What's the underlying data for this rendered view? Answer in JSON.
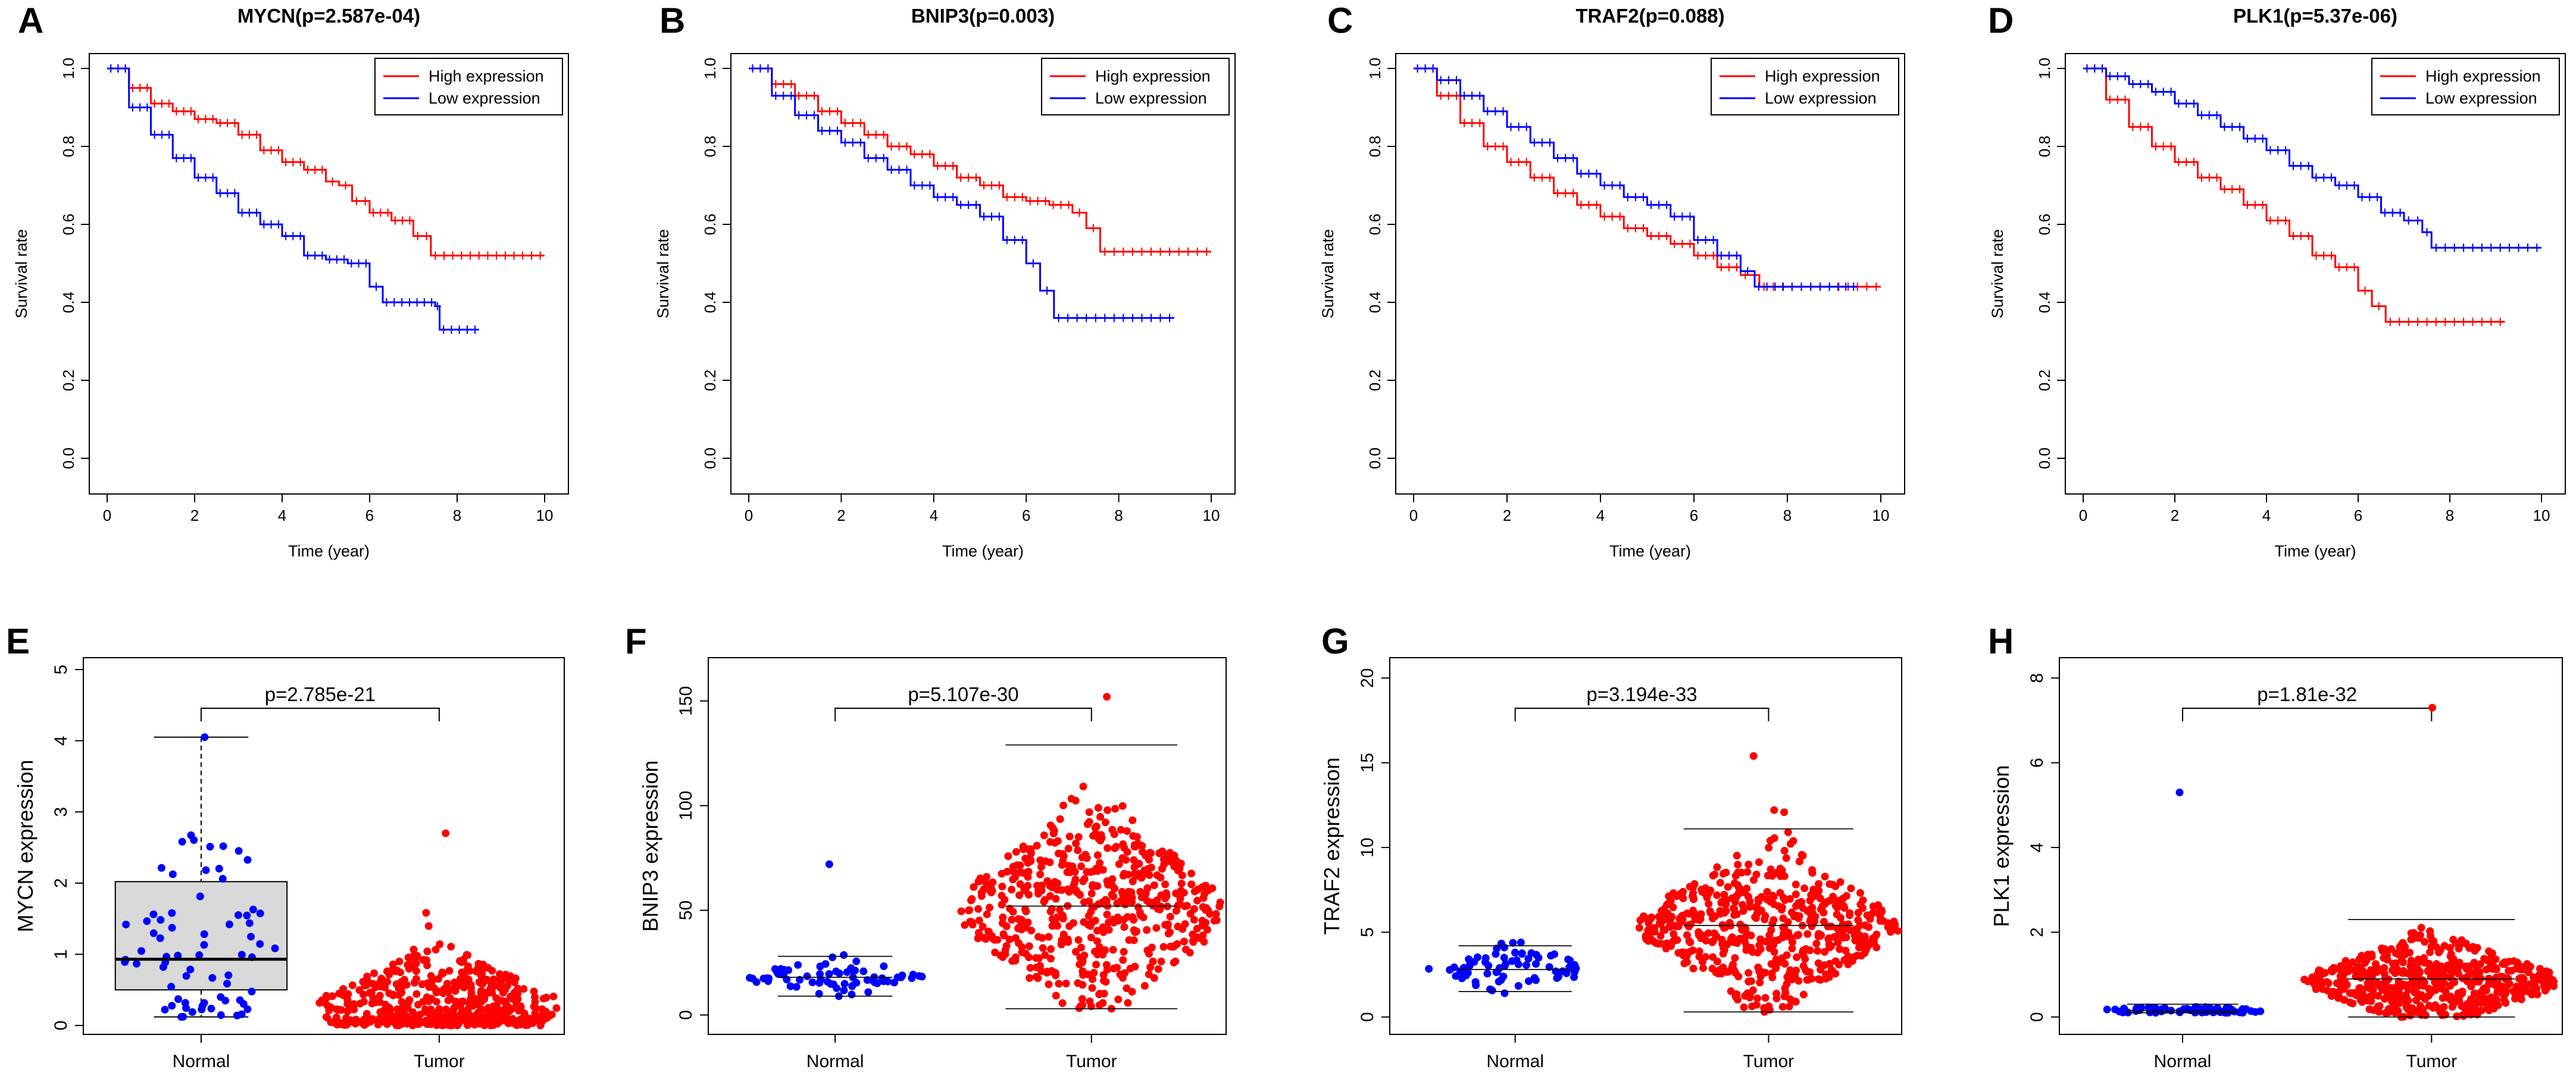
{
  "colors": {
    "high": "#ff0000",
    "low": "#0000ff",
    "axis": "#000000",
    "box": "#d9d9d9"
  },
  "chart_data": [
    {
      "type": "line",
      "panel": "A",
      "title": "MYCN(p=2.587e-04)",
      "xlabel": "Time (year)",
      "ylabel": "Survival rate",
      "xlim": [
        0,
        10
      ],
      "ylim": [
        0,
        1
      ],
      "xticks": [
        0,
        2,
        4,
        6,
        8,
        10
      ],
      "yticks": [
        0.0,
        0.2,
        0.4,
        0.6,
        0.8,
        1.0
      ],
      "legend": [
        "High expression",
        "Low expression"
      ],
      "series": [
        {
          "name": "High expression",
          "color": "#ff0000",
          "points": [
            [
              0,
              1.0
            ],
            [
              0.5,
              0.95
            ],
            [
              1,
              0.91
            ],
            [
              1.5,
              0.89
            ],
            [
              2,
              0.87
            ],
            [
              2.5,
              0.86
            ],
            [
              3,
              0.83
            ],
            [
              3.5,
              0.79
            ],
            [
              4,
              0.76
            ],
            [
              4.5,
              0.74
            ],
            [
              5,
              0.71
            ],
            [
              5.3,
              0.7
            ],
            [
              5.6,
              0.66
            ],
            [
              6,
              0.63
            ],
            [
              6.5,
              0.61
            ],
            [
              7,
              0.57
            ],
            [
              7.4,
              0.52
            ],
            [
              8,
              0.52
            ],
            [
              9,
              0.52
            ],
            [
              10,
              0.52
            ]
          ]
        },
        {
          "name": "Low expression",
          "color": "#0000ff",
          "points": [
            [
              0,
              1.0
            ],
            [
              0.5,
              0.9
            ],
            [
              1,
              0.83
            ],
            [
              1.5,
              0.77
            ],
            [
              2,
              0.72
            ],
            [
              2.5,
              0.68
            ],
            [
              3,
              0.63
            ],
            [
              3.5,
              0.6
            ],
            [
              4,
              0.57
            ],
            [
              4.5,
              0.52
            ],
            [
              5,
              0.51
            ],
            [
              5.5,
              0.5
            ],
            [
              6,
              0.44
            ],
            [
              6.3,
              0.4
            ],
            [
              7,
              0.4
            ],
            [
              7.5,
              0.39
            ],
            [
              7.6,
              0.33
            ],
            [
              8.5,
              0.33
            ]
          ]
        }
      ]
    },
    {
      "type": "line",
      "panel": "B",
      "title": "BNIP3(p=0.003)",
      "xlabel": "Time (year)",
      "ylabel": "Survival rate",
      "xlim": [
        0,
        10
      ],
      "ylim": [
        0,
        1
      ],
      "xticks": [
        0,
        2,
        4,
        6,
        8,
        10
      ],
      "yticks": [
        0.0,
        0.2,
        0.4,
        0.6,
        0.8,
        1.0
      ],
      "legend": [
        "High expression",
        "Low expression"
      ],
      "series": [
        {
          "name": "High expression",
          "color": "#ff0000",
          "points": [
            [
              0,
              1.0
            ],
            [
              0.5,
              0.96
            ],
            [
              1,
              0.93
            ],
            [
              1.5,
              0.89
            ],
            [
              2,
              0.86
            ],
            [
              2.5,
              0.83
            ],
            [
              3,
              0.8
            ],
            [
              3.5,
              0.78
            ],
            [
              4,
              0.75
            ],
            [
              4.5,
              0.72
            ],
            [
              5,
              0.7
            ],
            [
              5.5,
              0.67
            ],
            [
              6,
              0.66
            ],
            [
              6.5,
              0.65
            ],
            [
              7,
              0.63
            ],
            [
              7.3,
              0.59
            ],
            [
              7.6,
              0.53
            ],
            [
              8,
              0.53
            ],
            [
              9,
              0.53
            ],
            [
              10,
              0.53
            ]
          ]
        },
        {
          "name": "Low expression",
          "color": "#0000ff",
          "points": [
            [
              0,
              1.0
            ],
            [
              0.5,
              0.93
            ],
            [
              1,
              0.88
            ],
            [
              1.5,
              0.84
            ],
            [
              2,
              0.81
            ],
            [
              2.5,
              0.77
            ],
            [
              3,
              0.74
            ],
            [
              3.5,
              0.7
            ],
            [
              4,
              0.67
            ],
            [
              4.5,
              0.65
            ],
            [
              5,
              0.62
            ],
            [
              5.5,
              0.56
            ],
            [
              6,
              0.5
            ],
            [
              6.3,
              0.43
            ],
            [
              6.6,
              0.36
            ],
            [
              7,
              0.36
            ],
            [
              8,
              0.36
            ],
            [
              9.2,
              0.36
            ]
          ]
        }
      ]
    },
    {
      "type": "line",
      "panel": "C",
      "title": "TRAF2(p=0.088)",
      "xlabel": "Time (year)",
      "ylabel": "Survival rate",
      "xlim": [
        0,
        10
      ],
      "ylim": [
        0,
        1
      ],
      "xticks": [
        0,
        2,
        4,
        6,
        8,
        10
      ],
      "yticks": [
        0.0,
        0.2,
        0.4,
        0.6,
        0.8,
        1.0
      ],
      "legend": [
        "High expression",
        "Low expression"
      ],
      "series": [
        {
          "name": "High expression",
          "color": "#ff0000",
          "points": [
            [
              0,
              1.0
            ],
            [
              0.5,
              0.93
            ],
            [
              1,
              0.86
            ],
            [
              1.5,
              0.8
            ],
            [
              2,
              0.76
            ],
            [
              2.5,
              0.72
            ],
            [
              3,
              0.68
            ],
            [
              3.5,
              0.65
            ],
            [
              4,
              0.62
            ],
            [
              4.5,
              0.59
            ],
            [
              5,
              0.57
            ],
            [
              5.5,
              0.55
            ],
            [
              6,
              0.52
            ],
            [
              6.5,
              0.49
            ],
            [
              7,
              0.47
            ],
            [
              7.4,
              0.44
            ],
            [
              8,
              0.44
            ],
            [
              9,
              0.44
            ],
            [
              10,
              0.44
            ]
          ]
        },
        {
          "name": "Low expression",
          "color": "#0000ff",
          "points": [
            [
              0,
              1.0
            ],
            [
              0.5,
              0.97
            ],
            [
              1,
              0.93
            ],
            [
              1.5,
              0.89
            ],
            [
              2,
              0.85
            ],
            [
              2.5,
              0.81
            ],
            [
              3,
              0.77
            ],
            [
              3.5,
              0.73
            ],
            [
              4,
              0.7
            ],
            [
              4.5,
              0.67
            ],
            [
              5,
              0.65
            ],
            [
              5.5,
              0.62
            ],
            [
              6,
              0.56
            ],
            [
              6.5,
              0.52
            ],
            [
              7,
              0.48
            ],
            [
              7.3,
              0.44
            ],
            [
              8,
              0.44
            ],
            [
              9,
              0.44
            ],
            [
              9.5,
              0.44
            ]
          ]
        }
      ]
    },
    {
      "type": "line",
      "panel": "D",
      "title": "PLK1(p=5.37e-06)",
      "xlabel": "Time (year)",
      "ylabel": "Survival rate",
      "xlim": [
        0,
        10
      ],
      "ylim": [
        0,
        1
      ],
      "xticks": [
        0,
        2,
        4,
        6,
        8,
        10
      ],
      "yticks": [
        0.0,
        0.2,
        0.4,
        0.6,
        0.8,
        1.0
      ],
      "legend": [
        "High expression",
        "Low expression"
      ],
      "series": [
        {
          "name": "High expression",
          "color": "#ff0000",
          "points": [
            [
              0,
              1.0
            ],
            [
              0.5,
              0.92
            ],
            [
              1,
              0.85
            ],
            [
              1.5,
              0.8
            ],
            [
              2,
              0.76
            ],
            [
              2.5,
              0.72
            ],
            [
              3,
              0.69
            ],
            [
              3.5,
              0.65
            ],
            [
              4,
              0.61
            ],
            [
              4.5,
              0.57
            ],
            [
              5,
              0.52
            ],
            [
              5.5,
              0.49
            ],
            [
              6,
              0.43
            ],
            [
              6.3,
              0.39
            ],
            [
              6.6,
              0.35
            ],
            [
              7,
              0.35
            ],
            [
              8,
              0.35
            ],
            [
              9.2,
              0.35
            ]
          ]
        },
        {
          "name": "Low expression",
          "color": "#0000ff",
          "points": [
            [
              0,
              1.0
            ],
            [
              0.5,
              0.98
            ],
            [
              1,
              0.96
            ],
            [
              1.5,
              0.94
            ],
            [
              2,
              0.91
            ],
            [
              2.5,
              0.88
            ],
            [
              3,
              0.85
            ],
            [
              3.5,
              0.82
            ],
            [
              4,
              0.79
            ],
            [
              4.5,
              0.75
            ],
            [
              5,
              0.72
            ],
            [
              5.5,
              0.7
            ],
            [
              6,
              0.67
            ],
            [
              6.5,
              0.63
            ],
            [
              7,
              0.61
            ],
            [
              7.4,
              0.58
            ],
            [
              7.6,
              0.54
            ],
            [
              8,
              0.54
            ],
            [
              9,
              0.54
            ],
            [
              10,
              0.54
            ]
          ]
        }
      ]
    },
    {
      "type": "scatter",
      "panel": "E",
      "ylabel": "MYCN expression",
      "categories": [
        "Normal",
        "Tumor"
      ],
      "ylim": [
        0,
        5
      ],
      "yticks": [
        0,
        1,
        2,
        3,
        4,
        5
      ],
      "pvalue": "p=2.785e-21",
      "boxplot": {
        "q1": 0.5,
        "median": 0.93,
        "q3": 2.02,
        "wlow": 0.12,
        "whigh": 4.05
      },
      "groups": [
        {
          "name": "Normal",
          "color": "#0000ff",
          "n": 72,
          "center": 1.2,
          "spread": 0.9,
          "max": 4.05,
          "min": 0.12
        },
        {
          "name": "Tumor",
          "color": "#ff0000",
          "n": 520,
          "center": 0.25,
          "spread": 0.35,
          "max": 2.7,
          "min": 0.0
        }
      ]
    },
    {
      "type": "scatter",
      "panel": "F",
      "ylabel": "BNIP3 expression",
      "categories": [
        "Normal",
        "Tumor"
      ],
      "ylim": [
        -5,
        165
      ],
      "yticks": [
        0,
        50,
        100,
        150
      ],
      "pvalue": "p=5.107e-30",
      "whiskers": [
        {
          "mean": 18,
          "low": 9,
          "high": 28
        },
        {
          "mean": 52,
          "low": 3,
          "high": 129
        }
      ],
      "groups": [
        {
          "name": "Normal",
          "color": "#0000ff",
          "n": 72,
          "center": 18,
          "spread": 4,
          "max": 72,
          "min": 9
        },
        {
          "name": "Tumor",
          "color": "#ff0000",
          "n": 540,
          "center": 50,
          "spread": 22,
          "max": 152,
          "min": 3
        }
      ]
    },
    {
      "type": "scatter",
      "panel": "G",
      "ylabel": "TRAF2 expression",
      "categories": [
        "Normal",
        "Tumor"
      ],
      "ylim": [
        -0.5,
        20.5
      ],
      "yticks": [
        0,
        5,
        10,
        15,
        20
      ],
      "pvalue": "p=3.194e-33",
      "whiskers": [
        {
          "mean": 2.8,
          "low": 1.5,
          "high": 4.2
        },
        {
          "mean": 5.4,
          "low": 0.3,
          "high": 11.1
        }
      ],
      "groups": [
        {
          "name": "Normal",
          "color": "#0000ff",
          "n": 72,
          "center": 2.8,
          "spread": 0.6,
          "max": 4.4,
          "min": 1.4
        },
        {
          "name": "Tumor",
          "color": "#ff0000",
          "n": 540,
          "center": 5.4,
          "spread": 2.0,
          "max": 15.4,
          "min": 0.3
        }
      ]
    },
    {
      "type": "scatter",
      "panel": "H",
      "ylabel": "PLK1 expression",
      "categories": [
        "Normal",
        "Tumor"
      ],
      "ylim": [
        -0.2,
        8.2
      ],
      "yticks": [
        0,
        2,
        4,
        6,
        8
      ],
      "pvalue": "p=1.81e-32",
      "whiskers": [
        {
          "mean": 0.15,
          "low": 0.1,
          "high": 0.3
        },
        {
          "mean": 0.9,
          "low": 0.0,
          "high": 2.3
        }
      ],
      "groups": [
        {
          "name": "Normal",
          "color": "#0000ff",
          "n": 72,
          "center": 0.15,
          "spread": 0.05,
          "max": 5.3,
          "min": 0.1
        },
        {
          "name": "Tumor",
          "color": "#ff0000",
          "n": 540,
          "center": 0.85,
          "spread": 0.45,
          "max": 7.3,
          "min": 0.0
        }
      ]
    }
  ]
}
